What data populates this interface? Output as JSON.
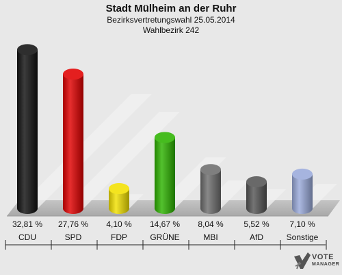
{
  "header": {
    "title": "Stadt Mülheim an der Ruhr",
    "subtitle": "Bezirksvertretungswahl 25.05.2014",
    "district": "Wahlbezirk 242"
  },
  "chart_data": {
    "type": "bar",
    "title": "Stadt Mülheim an der Ruhr",
    "categories": [
      "CDU",
      "SPD",
      "FDP",
      "GRÜNE",
      "MBI",
      "AfD",
      "Sonstige"
    ],
    "values": [
      32.81,
      27.76,
      4.1,
      14.67,
      8.04,
      5.52,
      7.1
    ],
    "value_labels": [
      "32,81 %",
      "27,76 %",
      "4,10 %",
      "14,67 %",
      "8,04 %",
      "5,52 %",
      "7,10 %"
    ],
    "colors": [
      "#111111",
      "#e00000",
      "#f2e000",
      "#2db300",
      "#6e6e6e",
      "#555555",
      "#9aaadb"
    ],
    "ylim": [
      0,
      34
    ],
    "grid": false,
    "legend": "none"
  },
  "logo": {
    "line1": "VOTE",
    "line2": "MANAGER"
  }
}
